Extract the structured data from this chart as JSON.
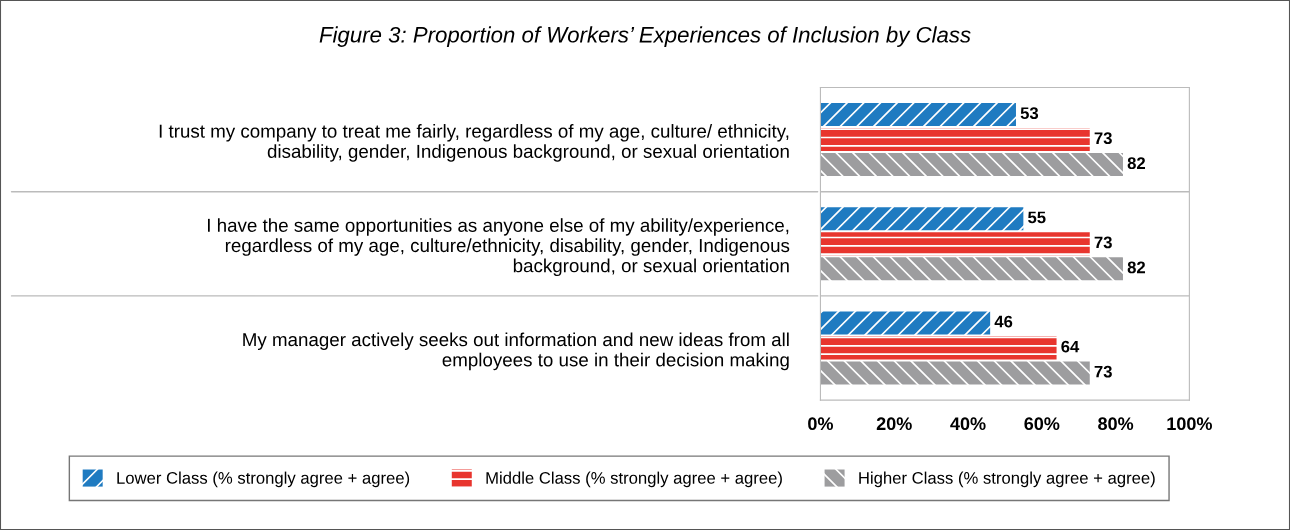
{
  "chart_data": {
    "type": "bar",
    "orientation": "horizontal",
    "title": "Figure 3: Proportion of Workers’ Experiences of Inclusion by Class",
    "categories": [
      "I trust my company to treat me fairly, regardless of my age, culture/ ethnicity,\ndisability, gender, Indigenous background, or sexual orientation",
      "I have the same opportunities as anyone else of my ability/experience,\nregardless of my age, culture/ethnicity, disability, gender, Indigenous\nbackground, or sexual orientation",
      "My manager actively seeks out information and new ideas from all\nemployees to use in their decision making"
    ],
    "series": [
      {
        "name": "Lower Class (% strongly agree + agree)",
        "color": "#1f7bc1",
        "values": [
          53,
          55,
          46
        ]
      },
      {
        "name": "Middle Class (% strongly agree + agree)",
        "color": "#e8352e",
        "values": [
          73,
          73,
          64
        ]
      },
      {
        "name": "Higher Class (% strongly agree + agree)",
        "color": "#9d9d9f",
        "values": [
          82,
          82,
          73
        ]
      }
    ],
    "xlim": [
      0,
      100
    ],
    "xticks": [
      {
        "value": 0,
        "label": "0%"
      },
      {
        "value": 20,
        "label": "20%"
      },
      {
        "value": 40,
        "label": "40%"
      },
      {
        "value": 60,
        "label": "60%"
      },
      {
        "value": 80,
        "label": "80%"
      },
      {
        "value": 100,
        "label": "100%"
      }
    ],
    "data_labels": true,
    "grid": "y",
    "legend": "bottom"
  }
}
